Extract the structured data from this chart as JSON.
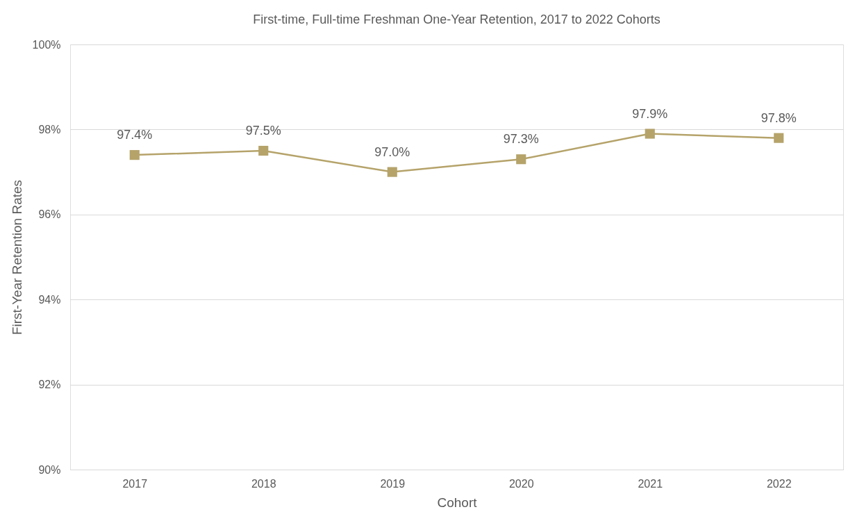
{
  "chart_data": {
    "type": "line",
    "title": "First-time, Full-time Freshman One-Year Retention, 2017 to 2022 Cohorts",
    "xlabel": "Cohort",
    "ylabel": "First-Year Retention Rates",
    "categories": [
      "2017",
      "2018",
      "2019",
      "2020",
      "2021",
      "2022"
    ],
    "values": [
      97.4,
      97.5,
      97.0,
      97.3,
      97.9,
      97.8
    ],
    "value_labels": [
      "97.4%",
      "97.5%",
      "97.0%",
      "97.3%",
      "97.9%",
      "97.8%"
    ],
    "color": "#b5a36a",
    "ylim": [
      90,
      100
    ],
    "yticks": [
      {
        "value": 90,
        "label": "90%"
      },
      {
        "value": 92,
        "label": "92%"
      },
      {
        "value": 94,
        "label": "94%"
      },
      {
        "value": 96,
        "label": "96%"
      },
      {
        "value": 98,
        "label": "98%"
      },
      {
        "value": 100,
        "label": "100%"
      }
    ],
    "grid": "y",
    "marker": "square",
    "line_style": "solid"
  }
}
